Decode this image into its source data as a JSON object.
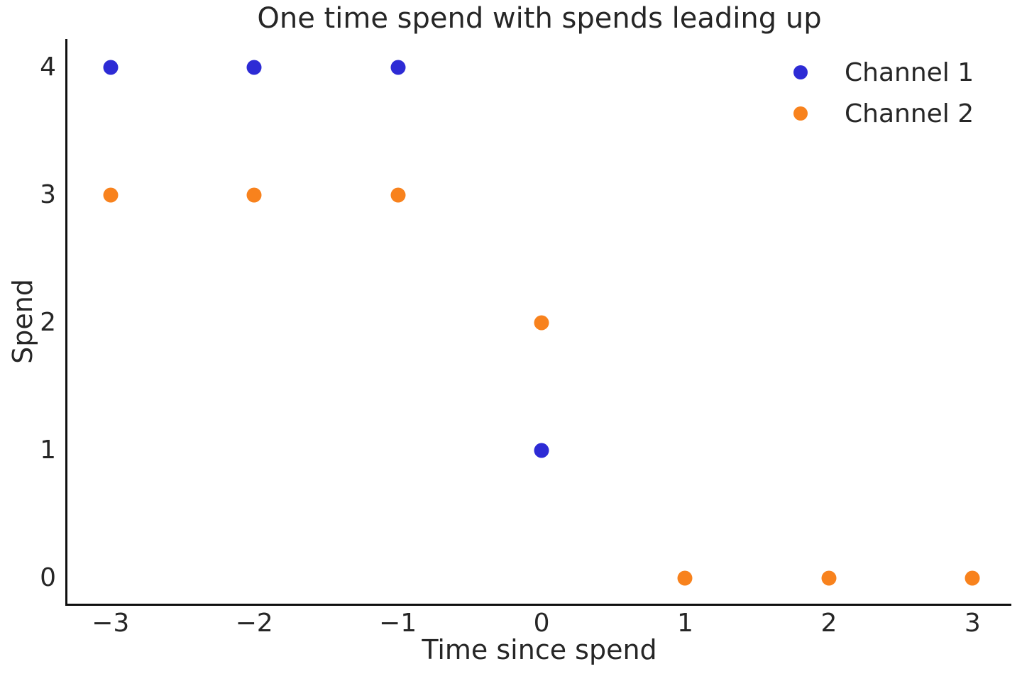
{
  "chart_data": {
    "type": "scatter",
    "title": "One time spend with spends leading up",
    "xlabel": "Time since spend",
    "ylabel": "Spend",
    "xticks": [
      -3,
      -2,
      -1,
      0,
      1,
      2,
      3
    ],
    "yticks": [
      0,
      1,
      2,
      3,
      4
    ],
    "xlim": [
      -3.3,
      3.27
    ],
    "ylim": [
      -0.2,
      4.22
    ],
    "grid": false,
    "legend_position": "upper right",
    "legend_frame": false,
    "marker": "circle",
    "series": [
      {
        "name": "Channel 1",
        "color": "#2d2bd5",
        "points": [
          [
            -3,
            4
          ],
          [
            -2,
            4
          ],
          [
            -1,
            4
          ],
          [
            0,
            1
          ]
        ]
      },
      {
        "name": "Channel 2",
        "color": "#f8821d",
        "points": [
          [
            -3,
            3
          ],
          [
            -2,
            3
          ],
          [
            -1,
            3
          ],
          [
            0,
            2
          ],
          [
            1,
            0
          ],
          [
            2,
            0
          ],
          [
            3,
            0
          ]
        ]
      }
    ],
    "colors": {
      "spine": "#0f0f0f",
      "text": "#262626",
      "background": "#ffffff"
    }
  }
}
